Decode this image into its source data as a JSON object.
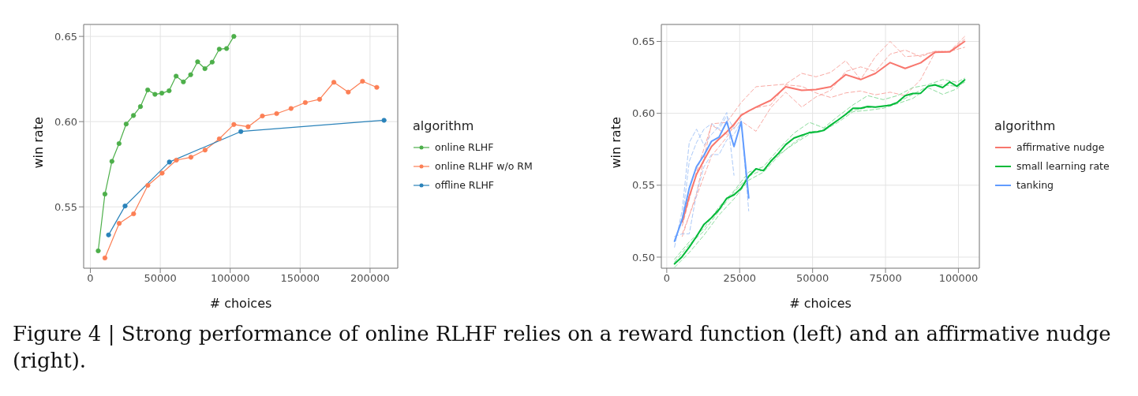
{
  "chart_data": [
    {
      "type": "line",
      "xlabel": "# choices",
      "ylabel": "win rate",
      "legend_title": "algorithm",
      "legend": "right",
      "grid": true,
      "marker": "circle",
      "xlim": [
        -4800,
        219800
      ],
      "xticks": [
        0,
        50000,
        100000,
        150000,
        200000
      ],
      "ylim": [
        0.514,
        0.657
      ],
      "yticks": [
        {
          "value": 0.55,
          "label": "0.55"
        },
        {
          "value": 0.6,
          "label": "0.60"
        },
        {
          "value": 0.65,
          "label": "0.65"
        }
      ],
      "annotations": [
        "Figure 4 | Strong performance of online RLHF relies on a reward function (left) and an affirmative nudge (right)."
      ],
      "series": [
        {
          "name": "online RLHF",
          "color": "#4daf4a",
          "x": [
            5600,
            10400,
            15400,
            20500,
            25600,
            30800,
            35800,
            41000,
            46200,
            51100,
            56300,
            61300,
            66500,
            71700,
            76700,
            81900,
            87100,
            92200,
            97400,
            102600
          ],
          "values": [
            0.5242,
            0.5575,
            0.5767,
            0.5871,
            0.5986,
            0.6036,
            0.6088,
            0.6186,
            0.616,
            0.6167,
            0.6181,
            0.6267,
            0.6233,
            0.6275,
            0.6351,
            0.6311,
            0.6349,
            0.6425,
            0.6429,
            0.65
          ]
        },
        {
          "name": "online RLHF w/o RM",
          "color": "#fc7f55",
          "x": [
            10400,
            20600,
            30900,
            41100,
            51300,
            61500,
            71900,
            82000,
            92200,
            102600,
            112800,
            123000,
            133200,
            143500,
            153700,
            163900,
            174100,
            184400,
            194600,
            204800
          ],
          "values": [
            0.52,
            0.5403,
            0.5459,
            0.5626,
            0.5698,
            0.5774,
            0.5791,
            0.5833,
            0.5899,
            0.5983,
            0.597,
            0.6033,
            0.6047,
            0.6077,
            0.6112,
            0.6131,
            0.6231,
            0.6173,
            0.6237,
            0.6201
          ]
        },
        {
          "name": "offline RLHF",
          "color": "#2b83ba",
          "x": [
            13000,
            24800,
            56500,
            107600,
            210000
          ],
          "values": [
            0.5335,
            0.5505,
            0.5763,
            0.5942,
            0.6008
          ]
        }
      ]
    },
    {
      "type": "line",
      "xlabel": "# choices",
      "ylabel": "win rate",
      "legend_title": "algorithm",
      "legend": "right",
      "grid": true,
      "marker": "none",
      "xlim": [
        -1860,
        107180
      ],
      "xticks": [
        0,
        25000,
        50000,
        75000,
        100000
      ],
      "ylim": [
        0.4923,
        0.6618
      ],
      "yticks": [
        {
          "value": 0.5,
          "label": "0.50"
        },
        {
          "value": 0.55,
          "label": "0.55"
        },
        {
          "value": 0.6,
          "label": "0.60"
        },
        {
          "value": 0.65,
          "label": "0.65"
        }
      ],
      "series": [
        {
          "color": "#f9aaa4",
          "line_style": "dashed",
          "x": [
            5320,
            10200,
            15340,
            20570,
            25530,
            30590,
            40780,
            46280,
            51150,
            56210,
            61350,
            66490,
            71540,
            76600,
            81740,
            87060,
            91930,
            96990,
            102130
          ],
          "values": [
            0.5144,
            0.5442,
            0.5927,
            0.5937,
            0.6076,
            0.6185,
            0.6203,
            0.6278,
            0.6254,
            0.6285,
            0.6366,
            0.6235,
            0.6394,
            0.65,
            0.6394,
            0.6403,
            0.6431,
            0.6431,
            0.6459
          ]
        },
        {
          "color": "#f9aaa4",
          "line_style": "dashed",
          "x": [
            5320,
            10200,
            15340,
            20570,
            25530,
            30590,
            35640,
            40780,
            46280,
            51150,
            56210,
            61350,
            66490,
            71540,
            76600,
            81740,
            87060,
            91930,
            96990,
            102130
          ],
          "values": [
            0.5218,
            0.5591,
            0.5918,
            0.5853,
            0.5946,
            0.5875,
            0.6039,
            0.6147,
            0.6043,
            0.6114,
            0.616,
            0.6291,
            0.6323,
            0.6291,
            0.6412,
            0.644,
            0.6394,
            0.6431,
            0.6431,
            0.6534
          ]
        },
        {
          "color": "#f9aaa4",
          "line_style": "dashed",
          "x": [
            5320,
            10200,
            15340,
            20570,
            25530,
            30590,
            35640,
            40780,
            46280,
            51150,
            56210,
            61350,
            66490,
            71540,
            76600,
            81740,
            87060,
            91930,
            96990,
            102130
          ],
          "values": [
            0.5162,
            0.5423,
            0.5703,
            0.5834,
            0.5993,
            0.6039,
            0.6058,
            0.6198,
            0.6188,
            0.6142,
            0.611,
            0.6142,
            0.6155,
            0.6129,
            0.6147,
            0.6123,
            0.6235,
            0.6422,
            0.6431,
            0.6515
          ]
        },
        {
          "color": "#8ddc9e",
          "line_style": "dashed",
          "x": [
            2660,
            7710,
            12770,
            17910,
            23050,
            28100,
            33160,
            38300,
            43620,
            48940,
            53810,
            58690,
            63830,
            68880,
            74200,
            79080,
            84400,
            89540,
            94590,
            99470,
            102130
          ],
          "values": [
            0.4985,
            0.5106,
            0.52,
            0.5349,
            0.5461,
            0.5591,
            0.5629,
            0.575,
            0.5862,
            0.5937,
            0.5899,
            0.5979,
            0.6058,
            0.6123,
            0.6095,
            0.6123,
            0.6179,
            0.6198,
            0.6235,
            0.6216,
            0.6244
          ]
        },
        {
          "color": "#8ddc9e",
          "line_style": "dashed",
          "x": [
            2660,
            7710,
            12770,
            17910,
            23050,
            28100,
            33160,
            38300,
            43620,
            48940,
            53810,
            58690,
            63830,
            68880,
            74200,
            79080,
            84400,
            89540,
            94590,
            99470,
            102130
          ],
          "values": [
            0.4929,
            0.5032,
            0.5153,
            0.5293,
            0.5405,
            0.5535,
            0.5591,
            0.5703,
            0.5797,
            0.5871,
            0.5881,
            0.5937,
            0.6011,
            0.6021,
            0.6035,
            0.6067,
            0.6104,
            0.6179,
            0.6132,
            0.617,
            0.6226
          ]
        },
        {
          "color": "#8ddc9e",
          "line_style": "dashed",
          "x": [
            2660,
            7710,
            12770,
            17910,
            23050,
            28100,
            33160,
            38300,
            43620,
            48940,
            53810,
            58690,
            63830,
            68880,
            74200,
            79080,
            84400,
            89540,
            94590,
            99470,
            102130
          ],
          "values": [
            0.4966,
            0.5088,
            0.5181,
            0.5321,
            0.5451,
            0.5563,
            0.561,
            0.5713,
            0.5787,
            0.5856,
            0.589,
            0.5955,
            0.6021,
            0.6039,
            0.6049,
            0.6076,
            0.6132,
            0.6188,
            0.6198,
            0.6188,
            0.6216
          ]
        },
        {
          "color": "#abc9f8",
          "line_style": "dashed",
          "x": [
            2660,
            5320,
            7710,
            10200,
            12770,
            15340,
            17910,
            20570,
            23050
          ],
          "values": [
            0.5069,
            0.533,
            0.5797,
            0.589,
            0.5778,
            0.5853,
            0.5909,
            0.6006,
            0.5569
          ]
        },
        {
          "color": "#abc9f8",
          "line_style": "dashed",
          "x": [
            2660,
            5320,
            7710,
            10200,
            12770,
            15340,
            17910,
            20570,
            23050,
            25530,
            28100
          ],
          "values": [
            0.5144,
            0.5162,
            0.5162,
            0.5442,
            0.5629,
            0.5713,
            0.5713,
            0.5815,
            0.5853,
            0.5942,
            0.5321
          ]
        },
        {
          "color": "#abc9f8",
          "line_style": "dashed",
          "x": [
            2660,
            5320,
            7710,
            10200,
            12770,
            15340,
            17910,
            20570,
            23050,
            25530
          ],
          "values": [
            0.511,
            0.5256,
            0.5666,
            0.5797,
            0.589,
            0.5927,
            0.589,
            0.5983,
            0.589,
            0.5965
          ]
        },
        {
          "name": "affirmative nudge",
          "color": "#f8766d",
          "line_style": "solid",
          "x": [
            5320,
            7710,
            10200,
            12770,
            15340,
            17910,
            20570,
            23050,
            25530,
            28100,
            30590,
            35640,
            40780,
            46280,
            51150,
            56210,
            61350,
            66490,
            71540,
            76600,
            81740,
            87060,
            91930,
            96990,
            102130
          ],
          "values": [
            0.5246,
            0.5423,
            0.5576,
            0.5675,
            0.5769,
            0.5821,
            0.5871,
            0.5923,
            0.5987,
            0.6017,
            0.6043,
            0.609,
            0.6185,
            0.616,
            0.6166,
            0.6185,
            0.6269,
            0.6235,
            0.6278,
            0.6353,
            0.6312,
            0.6351,
            0.6424,
            0.6427,
            0.65
          ]
        },
        {
          "name": "small learning rate",
          "color": "#00ba38",
          "line_style": "solid",
          "x": [
            2660,
            5050,
            7710,
            10200,
            12770,
            15340,
            17910,
            20570,
            23050,
            25530,
            28100,
            30590,
            33160,
            35640,
            38300,
            40780,
            43620,
            46280,
            48940,
            51600,
            53810,
            56210,
            58690,
            61350,
            63830,
            66490,
            68880,
            71540,
            74200,
            76600,
            79080,
            81740,
            84400,
            87060,
            89540,
            91930,
            94590,
            96990,
            99470,
            102130
          ],
          "values": [
            0.4953,
            0.4998,
            0.5069,
            0.5144,
            0.5228,
            0.5274,
            0.533,
            0.5409,
            0.5433,
            0.5479,
            0.5562,
            0.5614,
            0.5601,
            0.5666,
            0.5722,
            0.5782,
            0.5828,
            0.5847,
            0.5866,
            0.5871,
            0.5881,
            0.5918,
            0.5953,
            0.5993,
            0.6035,
            0.6035,
            0.6048,
            0.6043,
            0.605,
            0.6056,
            0.6076,
            0.6123,
            0.6138,
            0.614,
            0.6188,
            0.6198,
            0.6179,
            0.6218,
            0.6188,
            0.6233
          ]
        },
        {
          "name": "tanking",
          "color": "#619cff",
          "line_style": "solid",
          "x": [
            2660,
            5320,
            7710,
            10200,
            12770,
            15340,
            17910,
            20570,
            23050,
            25530,
            28100
          ],
          "values": [
            0.511,
            0.5265,
            0.5479,
            0.5629,
            0.5709,
            0.5806,
            0.5834,
            0.5942,
            0.5769,
            0.5942,
            0.5412
          ]
        }
      ]
    }
  ]
}
